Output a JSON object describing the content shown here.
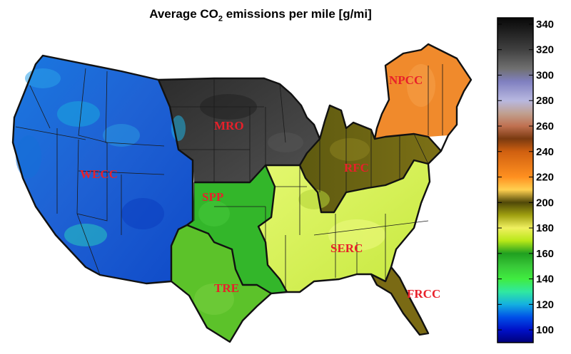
{
  "title_main": "Average CO",
  "title_sub": "2",
  "title_rest": " emissions per mile [g/mi]",
  "regions": [
    {
      "id": "wecc",
      "label": "WECC",
      "color": "#1f6fd6"
    },
    {
      "id": "mro",
      "label": "MRO",
      "color": "#3d3d3d"
    },
    {
      "id": "npcc",
      "label": "NPCC",
      "color": "#f28a2a"
    },
    {
      "id": "rfc",
      "label": "RFC",
      "color": "#6b6410"
    },
    {
      "id": "spp",
      "label": "SPP",
      "color": "#34b82a"
    },
    {
      "id": "tre",
      "label": "TRE",
      "color": "#5ec42a"
    },
    {
      "id": "serc",
      "label": "SERC",
      "color": "#d4f05a"
    },
    {
      "id": "frcc",
      "label": "FRCC",
      "color": "#7a6a14"
    }
  ],
  "colorbar": {
    "min": 90,
    "max": 345,
    "ticks": [
      100,
      120,
      140,
      160,
      180,
      200,
      220,
      240,
      260,
      280,
      300,
      320,
      340
    ],
    "stops": [
      {
        "v": 90,
        "color": "#00007a"
      },
      {
        "v": 100,
        "color": "#0010c8"
      },
      {
        "v": 110,
        "color": "#0050e8"
      },
      {
        "v": 120,
        "color": "#14b0e0"
      },
      {
        "v": 130,
        "color": "#30e8a0"
      },
      {
        "v": 140,
        "color": "#40ec40"
      },
      {
        "v": 150,
        "color": "#38c838"
      },
      {
        "v": 160,
        "color": "#20a020"
      },
      {
        "v": 170,
        "color": "#b8e818"
      },
      {
        "v": 180,
        "color": "#f0f060"
      },
      {
        "v": 190,
        "color": "#a0a010"
      },
      {
        "v": 200,
        "color": "#504808"
      },
      {
        "v": 210,
        "color": "#ffd050"
      },
      {
        "v": 220,
        "color": "#ff9020"
      },
      {
        "v": 240,
        "color": "#d06010"
      },
      {
        "v": 250,
        "color": "#7a3a10"
      },
      {
        "v": 260,
        "color": "#c07050"
      },
      {
        "v": 270,
        "color": "#c0a090"
      },
      {
        "v": 280,
        "color": "#b8b8e0"
      },
      {
        "v": 295,
        "color": "#8080c0"
      },
      {
        "v": 305,
        "color": "#707070"
      },
      {
        "v": 320,
        "color": "#404040"
      },
      {
        "v": 345,
        "color": "#080808"
      }
    ]
  }
}
